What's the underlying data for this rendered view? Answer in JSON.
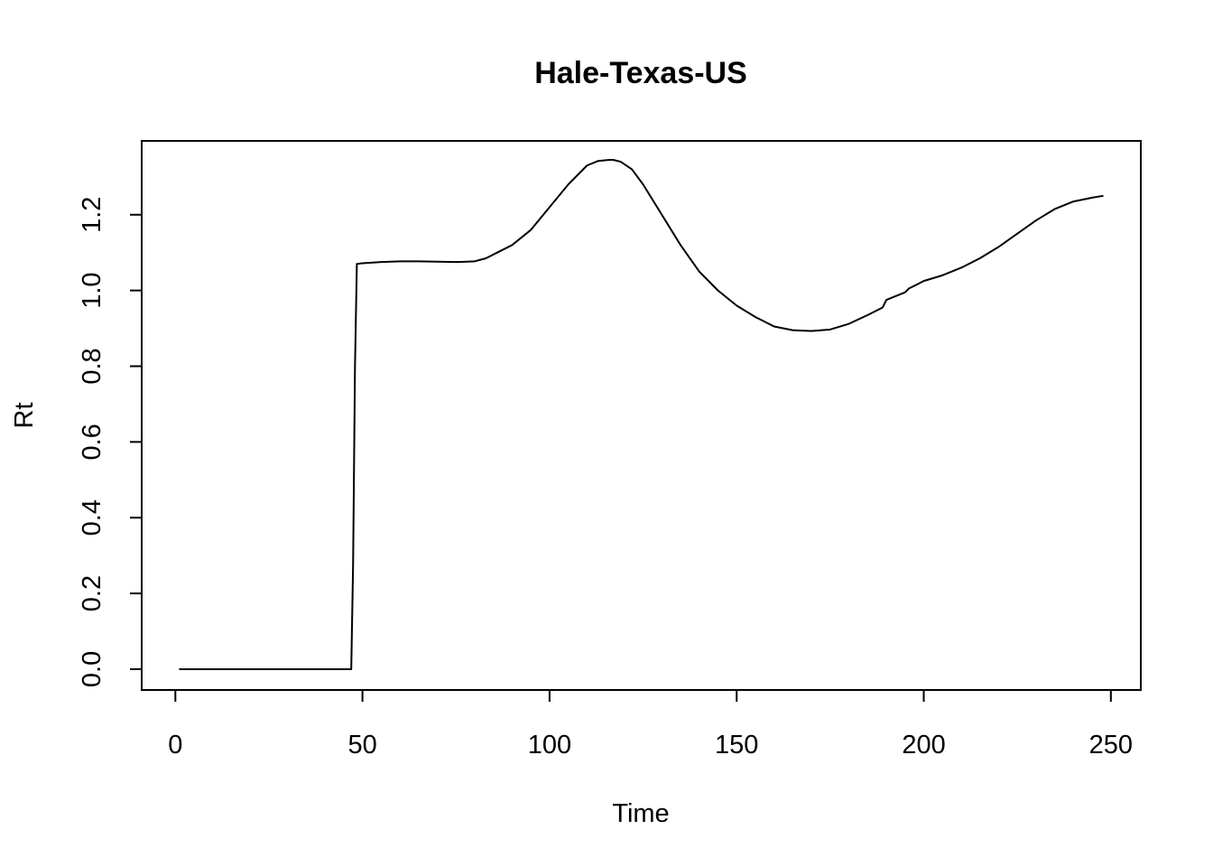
{
  "chart_data": {
    "type": "line",
    "title": "Hale-Texas-US",
    "xlabel": "Time",
    "ylabel": "Rt",
    "xlim": [
      -9,
      258
    ],
    "ylim": [
      -0.055,
      1.395
    ],
    "x_ticks": [
      0,
      50,
      100,
      150,
      200,
      250
    ],
    "y_ticks": [
      0.0,
      0.2,
      0.4,
      0.6,
      0.8,
      1.0,
      1.2
    ],
    "x_tick_labels": [
      "0",
      "50",
      "100",
      "150",
      "200",
      "250"
    ],
    "y_tick_labels": [
      "0.0",
      "0.2",
      "0.4",
      "0.6",
      "0.8",
      "1.0",
      "1.2"
    ],
    "grid": false,
    "line_color": "#000000",
    "series": [
      {
        "x": [
          1,
          10,
          20,
          30,
          40,
          47,
          47.5,
          48,
          48.5,
          50,
          55,
          60,
          65,
          70,
          75,
          80,
          83,
          86,
          90,
          95,
          100,
          105,
          110,
          113,
          116,
          117,
          119,
          122,
          125,
          130,
          135,
          140,
          145,
          150,
          155,
          160,
          165,
          170,
          175,
          180,
          185,
          189,
          190,
          195,
          196,
          200,
          205,
          210,
          215,
          220,
          225,
          230,
          235,
          240,
          245,
          248
        ],
        "y": [
          0.0,
          0.0,
          0.0,
          0.0,
          0.0,
          0.0,
          0.28,
          0.8,
          1.07,
          1.072,
          1.075,
          1.077,
          1.077,
          1.076,
          1.075,
          1.077,
          1.085,
          1.1,
          1.12,
          1.16,
          1.22,
          1.28,
          1.33,
          1.342,
          1.345,
          1.345,
          1.34,
          1.32,
          1.28,
          1.2,
          1.12,
          1.05,
          1.0,
          0.96,
          0.93,
          0.905,
          0.895,
          0.893,
          0.897,
          0.912,
          0.935,
          0.955,
          0.975,
          0.995,
          1.005,
          1.025,
          1.04,
          1.06,
          1.085,
          1.115,
          1.15,
          1.185,
          1.215,
          1.235,
          1.245,
          1.25
        ]
      }
    ]
  }
}
